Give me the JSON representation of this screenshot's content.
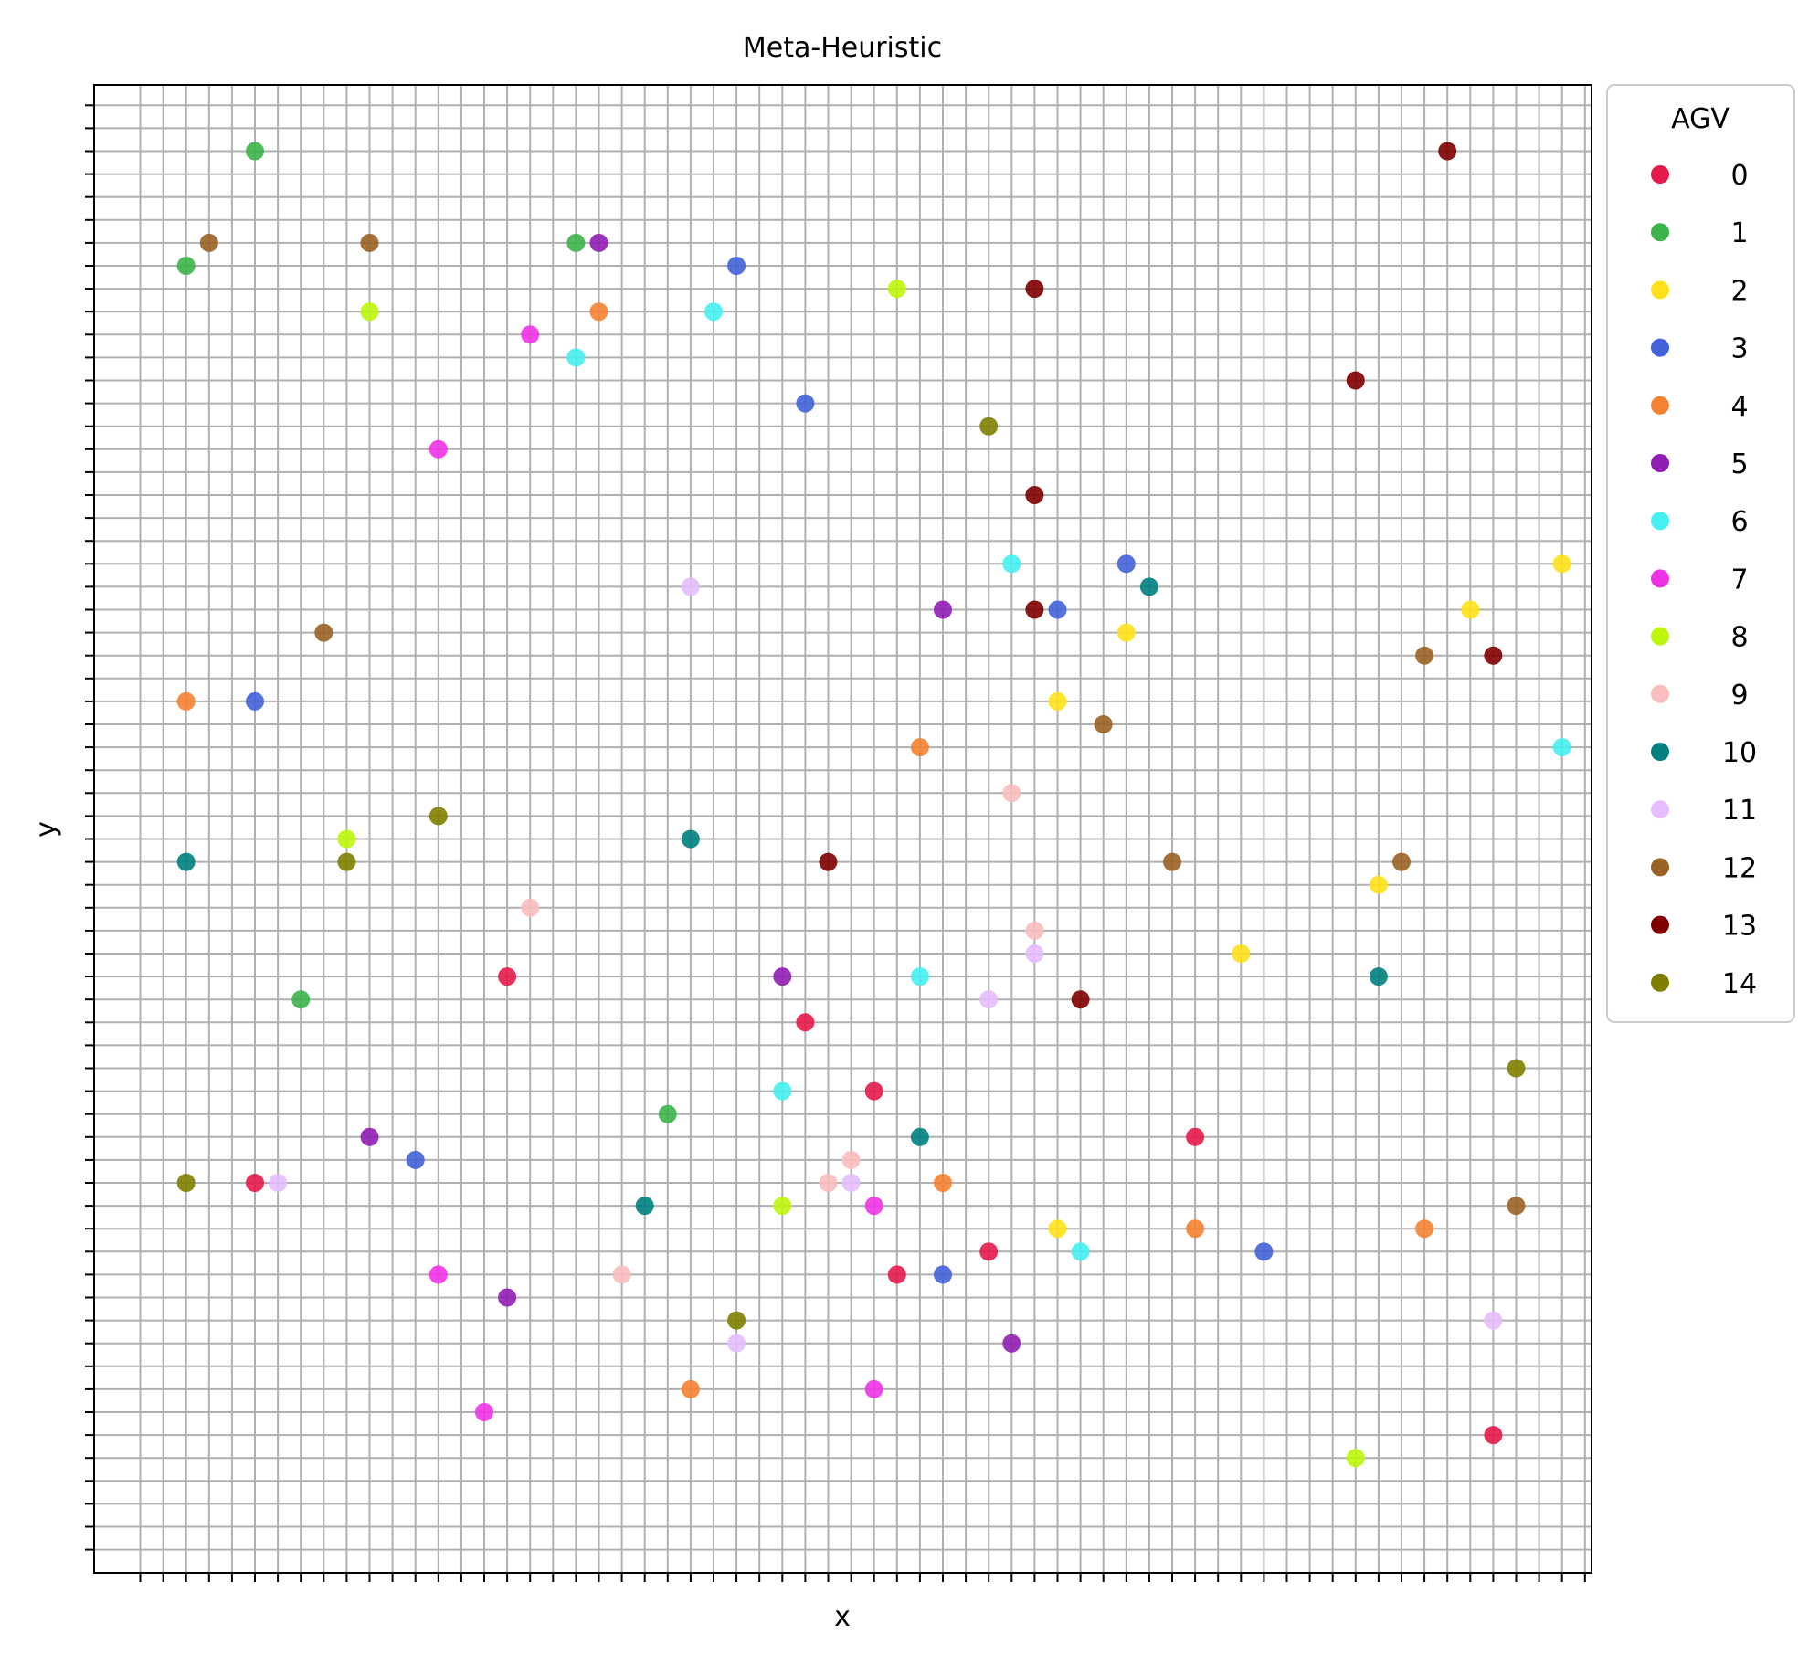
{
  "chart_data": {
    "type": "scatter",
    "title": "Meta-Heuristic",
    "xlabel": "x",
    "ylabel": "y",
    "xlim": [
      -2,
      63
    ],
    "ylim": [
      -1,
      63
    ],
    "grid": true,
    "tick_labels_shown": false,
    "legend": {
      "title": "AGV",
      "placement": "outside-right-top"
    },
    "series": [
      {
        "name": "0",
        "color": "#e6194b",
        "points": [
          [
            4,
            15
          ],
          [
            15,
            24
          ],
          [
            28,
            22
          ],
          [
            31,
            19
          ],
          [
            32,
            11
          ],
          [
            36,
            12
          ],
          [
            45,
            17
          ],
          [
            58,
            4
          ]
        ]
      },
      {
        "name": "1",
        "color": "#3cb44b",
        "points": [
          [
            1,
            55
          ],
          [
            4,
            60
          ],
          [
            6,
            23
          ],
          [
            18,
            56
          ],
          [
            22,
            18
          ]
        ]
      },
      {
        "name": "2",
        "color": "#ffe119",
        "points": [
          [
            39,
            36
          ],
          [
            39,
            13
          ],
          [
            42,
            39
          ],
          [
            47,
            25
          ],
          [
            53,
            28
          ],
          [
            57,
            40
          ],
          [
            61,
            42
          ]
        ]
      },
      {
        "name": "3",
        "color": "#4363d8",
        "points": [
          [
            4,
            36
          ],
          [
            11,
            16
          ],
          [
            25,
            55
          ],
          [
            28,
            49
          ],
          [
            34,
            11
          ],
          [
            39,
            40
          ],
          [
            42,
            42
          ],
          [
            48,
            12
          ]
        ]
      },
      {
        "name": "4",
        "color": "#f58231",
        "points": [
          [
            1,
            36
          ],
          [
            19,
            53
          ],
          [
            23,
            6
          ],
          [
            33,
            34
          ],
          [
            34,
            15
          ],
          [
            45,
            13
          ],
          [
            55,
            13
          ]
        ]
      },
      {
        "name": "5",
        "color": "#911eb4",
        "points": [
          [
            9,
            17
          ],
          [
            15,
            10
          ],
          [
            19,
            56
          ],
          [
            27,
            24
          ],
          [
            34,
            40
          ],
          [
            37,
            8
          ]
        ]
      },
      {
        "name": "6",
        "color": "#46f0f0",
        "points": [
          [
            18,
            51
          ],
          [
            24,
            53
          ],
          [
            27,
            19
          ],
          [
            33,
            24
          ],
          [
            37,
            42
          ],
          [
            40,
            12
          ],
          [
            61,
            34
          ]
        ]
      },
      {
        "name": "7",
        "color": "#f032e6",
        "points": [
          [
            12,
            47
          ],
          [
            12,
            11
          ],
          [
            14,
            5
          ],
          [
            16,
            52
          ],
          [
            31,
            6
          ],
          [
            31,
            14
          ]
        ]
      },
      {
        "name": "8",
        "color": "#bcf60c",
        "points": [
          [
            8,
            30
          ],
          [
            9,
            53
          ],
          [
            27,
            14
          ],
          [
            32,
            54
          ],
          [
            52,
            3
          ]
        ]
      },
      {
        "name": "9",
        "color": "#fabebe",
        "points": [
          [
            16,
            27
          ],
          [
            20,
            11
          ],
          [
            29,
            15
          ],
          [
            30,
            16
          ],
          [
            37,
            32
          ],
          [
            38,
            26
          ]
        ]
      },
      {
        "name": "10",
        "color": "#008080",
        "points": [
          [
            1,
            29
          ],
          [
            21,
            14
          ],
          [
            23,
            30
          ],
          [
            33,
            17
          ],
          [
            43,
            41
          ],
          [
            53,
            24
          ]
        ]
      },
      {
        "name": "11",
        "color": "#e6beff",
        "points": [
          [
            5,
            15
          ],
          [
            23,
            41
          ],
          [
            25,
            8
          ],
          [
            30,
            15
          ],
          [
            36,
            23
          ],
          [
            38,
            25
          ],
          [
            58,
            9
          ]
        ]
      },
      {
        "name": "12",
        "color": "#9a6324",
        "points": [
          [
            2,
            56
          ],
          [
            7,
            39
          ],
          [
            9,
            56
          ],
          [
            41,
            35
          ],
          [
            44,
            29
          ],
          [
            54,
            29
          ],
          [
            55,
            38
          ],
          [
            59,
            14
          ]
        ]
      },
      {
        "name": "13",
        "color": "#800000",
        "points": [
          [
            29,
            29
          ],
          [
            38,
            40
          ],
          [
            38,
            45
          ],
          [
            38,
            54
          ],
          [
            40,
            23
          ],
          [
            52,
            50
          ],
          [
            56,
            60
          ],
          [
            58,
            38
          ]
        ]
      },
      {
        "name": "14",
        "color": "#808000",
        "points": [
          [
            1,
            15
          ],
          [
            8,
            29
          ],
          [
            12,
            31
          ],
          [
            25,
            9
          ],
          [
            36,
            48
          ],
          [
            59,
            20
          ]
        ]
      }
    ]
  }
}
